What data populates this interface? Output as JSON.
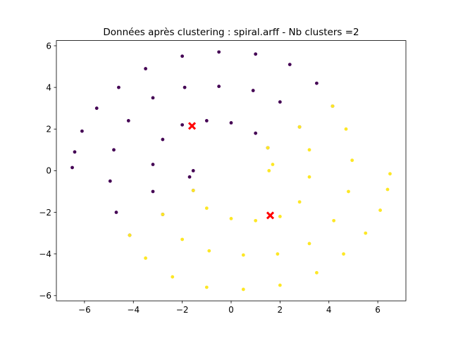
{
  "chart_data": {
    "type": "scatter",
    "title": "Données après clustering : spiral.arff - Nb clusters =2",
    "xlabel": "",
    "ylabel": "",
    "xlim": [
      -7.15,
      7.15
    ],
    "ylim": [
      -6.25,
      6.25
    ],
    "xticks": [
      -6,
      -4,
      -2,
      0,
      2,
      4,
      6
    ],
    "yticks": [
      -6,
      -4,
      -2,
      0,
      2,
      4,
      6
    ],
    "xtick_labels": [
      "−6",
      "−4",
      "−2",
      "0",
      "2",
      "4",
      "6"
    ],
    "ytick_labels": [
      "−6",
      "−4",
      "−2",
      "0",
      "2",
      "4",
      "6"
    ],
    "grid": false,
    "legend": "none",
    "series": [
      {
        "color": "#440154",
        "points": [
          [
            -6.5,
            0.15
          ],
          [
            -6.4,
            0.9
          ],
          [
            -6.1,
            1.9
          ],
          [
            -5.5,
            3.0
          ],
          [
            -4.6,
            4.0
          ],
          [
            -3.5,
            4.9
          ],
          [
            -2.0,
            5.5
          ],
          [
            -0.5,
            5.7
          ],
          [
            1.0,
            5.6
          ],
          [
            2.4,
            5.1
          ],
          [
            3.5,
            4.2
          ],
          [
            4.15,
            3.1
          ],
          [
            -4.15,
            -3.1
          ],
          [
            -4.7,
            -2.0
          ],
          [
            -4.95,
            -0.5
          ],
          [
            -4.8,
            1.0
          ],
          [
            -4.2,
            2.4
          ],
          [
            -3.2,
            3.5
          ],
          [
            -1.9,
            4.0
          ],
          [
            -0.5,
            4.05
          ],
          [
            0.9,
            3.85
          ],
          [
            2.0,
            3.3
          ],
          [
            2.8,
            2.1
          ],
          [
            -2.8,
            -2.1
          ],
          [
            -3.2,
            -1.0
          ],
          [
            -3.2,
            0.3
          ],
          [
            -2.8,
            1.5
          ],
          [
            -2.0,
            2.2
          ],
          [
            -1.0,
            2.4
          ],
          [
            0.0,
            2.3
          ],
          [
            1.0,
            1.8
          ],
          [
            1.5,
            1.1
          ],
          [
            -1.55,
            -0.95
          ],
          [
            -1.7,
            -0.3
          ],
          [
            -1.55,
            0.0
          ]
        ]
      },
      {
        "color": "#fde725",
        "points": [
          [
            4.15,
            3.1
          ],
          [
            4.7,
            2.0
          ],
          [
            4.95,
            0.5
          ],
          [
            4.8,
            -1.0
          ],
          [
            4.2,
            -2.4
          ],
          [
            3.2,
            -3.5
          ],
          [
            1.9,
            -4.0
          ],
          [
            0.5,
            -4.05
          ],
          [
            -0.9,
            -3.85
          ],
          [
            -2.0,
            -3.3
          ],
          [
            -2.8,
            -2.1
          ],
          [
            -4.15,
            -3.1
          ],
          [
            -3.5,
            -4.2
          ],
          [
            -2.4,
            -5.1
          ],
          [
            -1.0,
            -5.6
          ],
          [
            0.5,
            -5.7
          ],
          [
            2.0,
            -5.5
          ],
          [
            3.5,
            -4.9
          ],
          [
            4.6,
            -4.0
          ],
          [
            5.5,
            -3.0
          ],
          [
            6.1,
            -1.9
          ],
          [
            6.4,
            -0.9
          ],
          [
            6.5,
            -0.15
          ],
          [
            2.8,
            2.1
          ],
          [
            3.2,
            1.0
          ],
          [
            3.2,
            -0.3
          ],
          [
            2.8,
            -1.5
          ],
          [
            2.0,
            -2.2
          ],
          [
            1.0,
            -2.4
          ],
          [
            0.0,
            -2.3
          ],
          [
            -1.0,
            -1.8
          ],
          [
            -1.55,
            -0.95
          ],
          [
            1.5,
            1.1
          ],
          [
            1.7,
            0.3
          ],
          [
            1.55,
            0.0
          ]
        ]
      }
    ],
    "centroids": {
      "marker": "x",
      "color": "#ff0000",
      "points": [
        [
          -1.6,
          2.15
        ],
        [
          1.6,
          -2.15
        ]
      ]
    }
  }
}
